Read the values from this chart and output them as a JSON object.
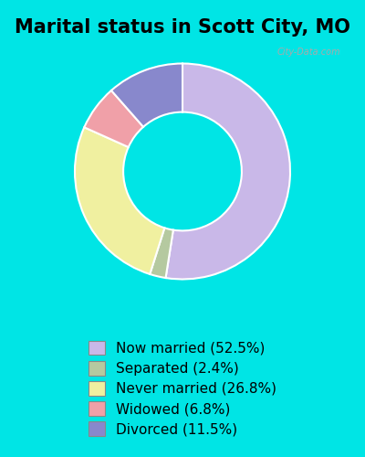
{
  "title": "Marital status in Scott City, MO",
  "slices": [
    52.5,
    2.4,
    26.8,
    6.8,
    11.5
  ],
  "labels": [
    "Now married (52.5%)",
    "Separated (2.4%)",
    "Never married (26.8%)",
    "Widowed (6.8%)",
    "Divorced (11.5%)"
  ],
  "colors": [
    "#c9b8e8",
    "#b5c9a0",
    "#f0f0a0",
    "#f0a0a8",
    "#8888cc"
  ],
  "startangle": 90,
  "title_fontsize": 15,
  "legend_fontsize": 11,
  "bg_top": "#00e5e5",
  "bg_chart": "#d8f0e0",
  "watermark": "City-Data.com"
}
